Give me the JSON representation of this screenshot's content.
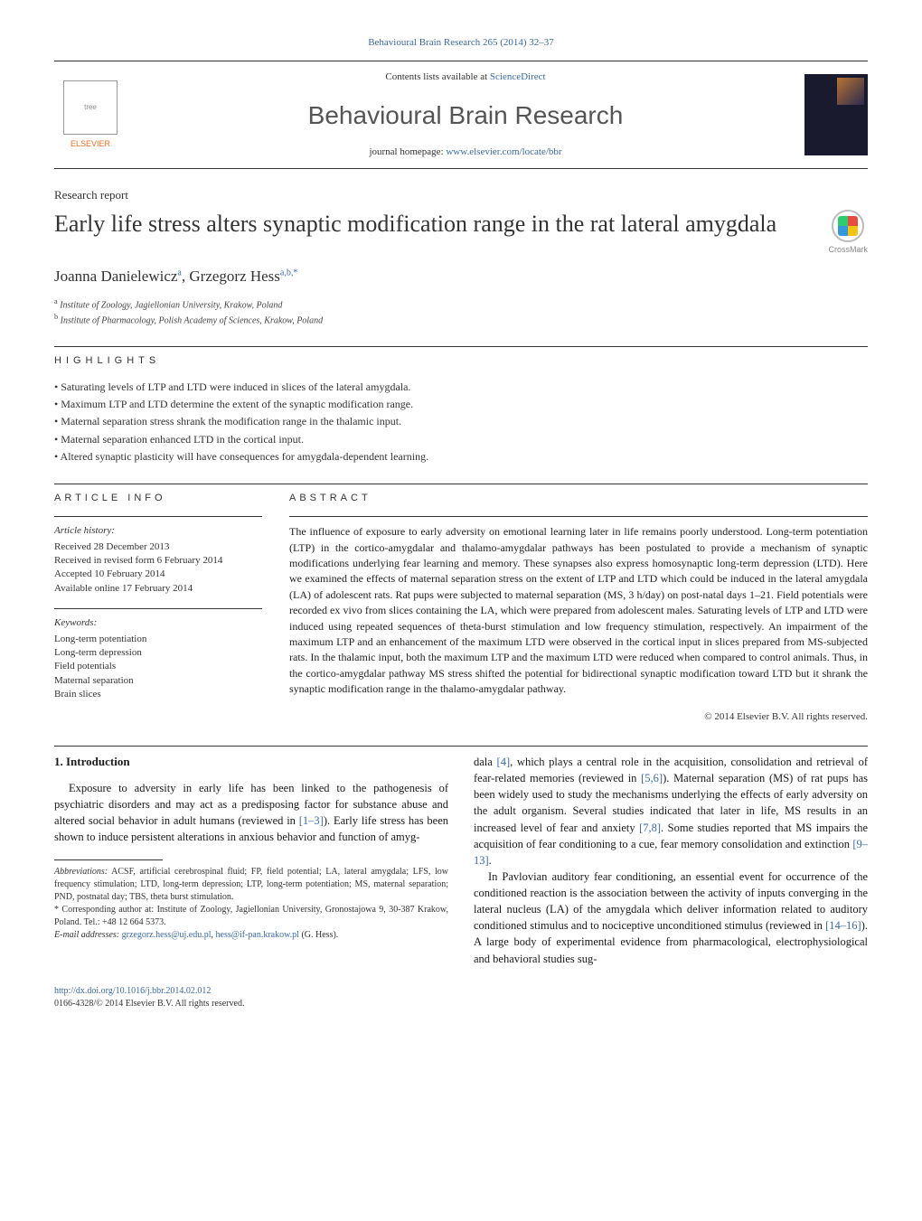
{
  "header_citation": "Behavioural Brain Research 265 (2014) 32–37",
  "header_citation_color": "#3a6aa8",
  "masthead": {
    "contents_prefix": "Contents lists available at ",
    "contents_link": "ScienceDirect",
    "journal_name": "Behavioural Brain Research",
    "homepage_prefix": "journal homepage: ",
    "homepage_link": "www.elsevier.com/locate/bbr",
    "publisher_label": "ELSEVIER"
  },
  "report_type": "Research report",
  "title": "Early life stress alters synaptic modification range in the rat lateral amygdala",
  "crossmark_label": "CrossMark",
  "authors_html": "Joanna Danielewicz",
  "author_a_sup": "a",
  "author_sep": ", ",
  "author_2": "Grzegorz Hess",
  "author_b_sup": "a,b,",
  "author_star": "*",
  "affiliations": {
    "a": "Institute of Zoology, Jagiellonian University, Krakow, Poland",
    "b": "Institute of Pharmacology, Polish Academy of Sciences, Krakow, Poland"
  },
  "highlights_heading": "highlights",
  "highlights": [
    "Saturating levels of LTP and LTD were induced in slices of the lateral amygdala.",
    "Maximum LTP and LTD determine the extent of the synaptic modification range.",
    "Maternal separation stress shrank the modification range in the thalamic input.",
    "Maternal separation enhanced LTD in the cortical input.",
    "Altered synaptic plasticity will have consequences for amygdala-dependent learning."
  ],
  "article_info_heading": "article info",
  "abstract_heading": "abstract",
  "history_heading": "Article history:",
  "history": [
    "Received 28 December 2013",
    "Received in revised form 6 February 2014",
    "Accepted 10 February 2014",
    "Available online 17 February 2014"
  ],
  "keywords_heading": "Keywords:",
  "keywords": [
    "Long-term potentiation",
    "Long-term depression",
    "Field potentials",
    "Maternal separation",
    "Brain slices"
  ],
  "abstract": "The influence of exposure to early adversity on emotional learning later in life remains poorly understood. Long-term potentiation (LTP) in the cortico-amygdalar and thalamo-amygdalar pathways has been postulated to provide a mechanism of synaptic modifications underlying fear learning and memory. These synapses also express homosynaptic long-term depression (LTD). Here we examined the effects of maternal separation stress on the extent of LTP and LTD which could be induced in the lateral amygdala (LA) of adolescent rats. Rat pups were subjected to maternal separation (MS, 3 h/day) on post-natal days 1–21. Field potentials were recorded ex vivo from slices containing the LA, which were prepared from adolescent males. Saturating levels of LTP and LTD were induced using repeated sequences of theta-burst stimulation and low frequency stimulation, respectively. An impairment of the maximum LTP and an enhancement of the maximum LTD were observed in the cortical input in slices prepared from MS-subjected rats. In the thalamic input, both the maximum LTP and the maximum LTD were reduced when compared to control animals. Thus, in the cortico-amygdalar pathway MS stress shifted the potential for bidirectional synaptic modification toward LTD but it shrank the synaptic modification range in the thalamo-amygdalar pathway.",
  "copyright": "© 2014 Elsevier B.V. All rights reserved.",
  "body": {
    "heading": "1.  Introduction",
    "para1_pre": "Exposure to adversity in early life has been linked to the pathogenesis of psychiatric disorders and may act as a predisposing factor for substance abuse and altered social behavior in adult humans (reviewed in ",
    "ref1": "[1–3]",
    "para1_post": "). Early life stress has been shown to induce persistent alterations in anxious behavior and function of amyg-",
    "para2_pre": "dala ",
    "ref4": "[4]",
    "para2_mid1": ", which plays a central role in the acquisition, consolidation and retrieval of fear-related memories (reviewed in ",
    "ref56": "[5,6]",
    "para2_mid2": "). Maternal separation (MS) of rat pups has been widely used to study the mechanisms underlying the effects of early adversity on the adult organism. Several studies indicated that later in life, MS results in an increased level of fear and anxiety ",
    "ref78": "[7,8]",
    "para2_mid3": ". Some studies reported that MS impairs the acquisition of fear conditioning to a cue, fear memory consolidation and extinction ",
    "ref913": "[9–13]",
    "para2_end": ".",
    "para3_pre": "In Pavlovian auditory fear conditioning, an essential event for occurrence of the conditioned reaction is the association between the activity of inputs converging in the lateral nucleus (LA) of the amygdala which deliver information related to auditory conditioned stimulus and to nociceptive unconditioned stimulus (reviewed in ",
    "ref1416": "[14–16]",
    "para3_post": "). A large body of experimental evidence from pharmacological, electrophysiological and behavioral studies sug-"
  },
  "footnotes": {
    "abbrev_label": "Abbreviations:",
    "abbrev_text": " ACSF, artificial cerebrospinal fluid; FP, field potential; LA, lateral amygdala; LFS, low frequency stimulation; LTD, long-term depression; LTP, long-term potentiation; MS, maternal separation; PND, postnatal day; TBS, theta burst stimulation.",
    "corr_marker": "*",
    "corr_text": " Corresponding author at: Institute of Zoology, Jagiellonian University, Gronostajowa 9, 30-387 Krakow, Poland. Tel.: +48 12 664 5373.",
    "email_label": "E-mail addresses:",
    "email1": "grzegorz.hess@uj.edu.pl",
    "email_sep": ", ",
    "email2": "hess@if-pan.krakow.pl",
    "email_tail": " (G. Hess)."
  },
  "footer": {
    "doi": "http://dx.doi.org/10.1016/j.bbr.2014.02.012",
    "issn_line": "0166-4328/© 2014 Elsevier B.V. All rights reserved."
  },
  "colors": {
    "link": "#3a6aa8",
    "elsevier": "#f36f21",
    "text": "#1a1a1a",
    "rule": "#333333"
  }
}
